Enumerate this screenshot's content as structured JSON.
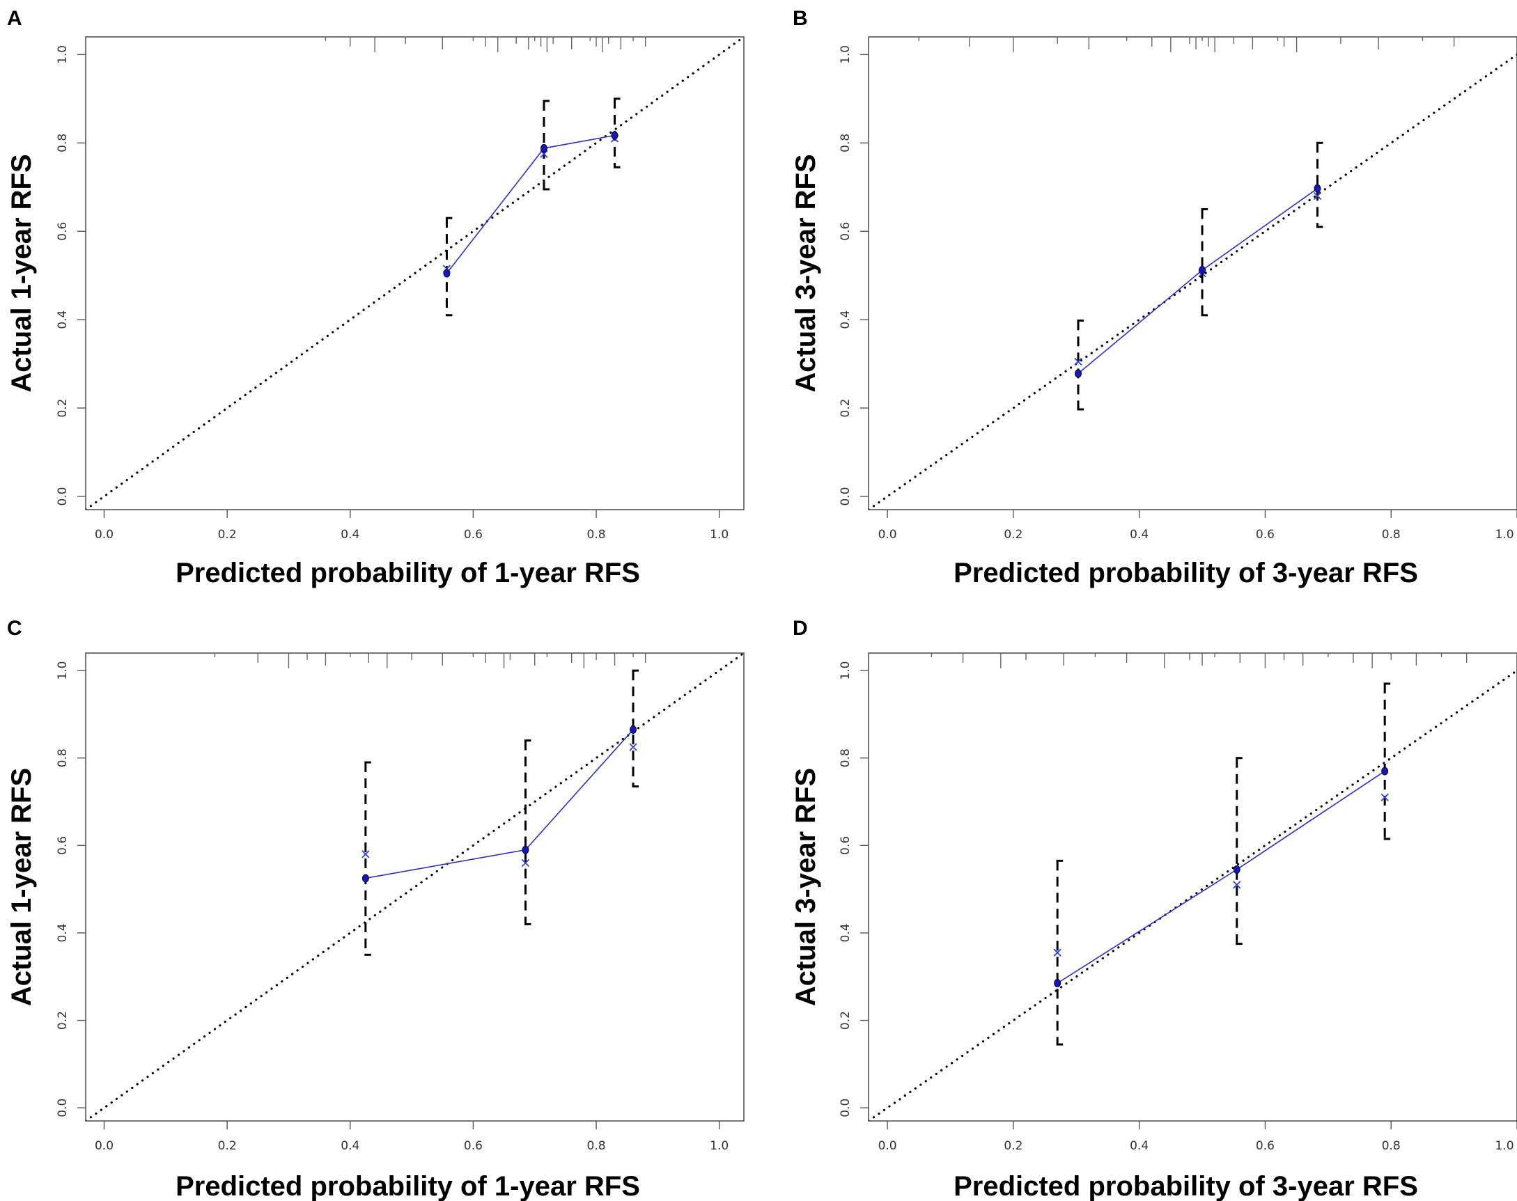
{
  "colors": {
    "line": "#3030c0",
    "point": "#1818b0",
    "cross": "#3040d0",
    "ideal": "#000000",
    "frame": "#555555"
  },
  "chart_data": [
    {
      "panel": "A",
      "type": "scatter",
      "xlabel": "Predicted probability of 1-year RFS",
      "ylabel": "Actual 1-year RFS",
      "xlim": [
        -0.03,
        1.04
      ],
      "ylim": [
        -0.03,
        1.04
      ],
      "xticks": [
        "0.0",
        "0.2",
        "0.4",
        "0.6",
        "0.8",
        "1.0"
      ],
      "yticks": [
        "0.0",
        "0.2",
        "0.4",
        "0.6",
        "0.8",
        "1.0"
      ],
      "points": [
        {
          "x": 0.557,
          "y": 0.505,
          "lower": 0.41,
          "upper": 0.63,
          "corrected": 0.515
        },
        {
          "x": 0.715,
          "y": 0.788,
          "lower": 0.695,
          "upper": 0.895,
          "corrected": 0.775
        },
        {
          "x": 0.83,
          "y": 0.817,
          "lower": 0.745,
          "upper": 0.9,
          "corrected": 0.81
        }
      ],
      "rug": [
        0.36,
        0.4,
        0.44,
        0.49,
        0.55,
        0.6,
        0.62,
        0.64,
        0.67,
        0.69,
        0.7,
        0.71,
        0.72,
        0.73,
        0.76,
        0.79,
        0.8,
        0.81,
        0.82,
        0.84,
        0.86,
        0.88
      ]
    },
    {
      "panel": "B",
      "type": "scatter",
      "xlabel": "Predicted probability of 3-year RFS",
      "ylabel": "Actual 3-year RFS",
      "xlim": [
        -0.03,
        1.0
      ],
      "ylim": [
        -0.03,
        1.04
      ],
      "xticks": [
        "0.0",
        "0.2",
        "0.4",
        "0.6",
        "0.8",
        "1.0"
      ],
      "yticks": [
        "0.0",
        "0.2",
        "0.4",
        "0.6",
        "0.8",
        "1.0"
      ],
      "points": [
        {
          "x": 0.303,
          "y": 0.278,
          "lower": 0.197,
          "upper": 0.398,
          "corrected": 0.305
        },
        {
          "x": 0.5,
          "y": 0.512,
          "lower": 0.41,
          "upper": 0.65,
          "corrected": 0.505
        },
        {
          "x": 0.683,
          "y": 0.697,
          "lower": 0.61,
          "upper": 0.8,
          "corrected": 0.68
        }
      ],
      "rug": [
        0.05,
        0.13,
        0.2,
        0.27,
        0.32,
        0.38,
        0.42,
        0.45,
        0.48,
        0.49,
        0.5,
        0.51,
        0.52,
        0.55,
        0.58,
        0.62,
        0.63,
        0.65,
        0.72,
        0.78,
        0.85,
        0.9
      ]
    },
    {
      "panel": "C",
      "type": "scatter",
      "xlabel": "Predicted probability of 1-year RFS",
      "ylabel": "Actual 1-year RFS",
      "xlim": [
        -0.03,
        1.04
      ],
      "ylim": [
        -0.03,
        1.04
      ],
      "xticks": [
        "0.0",
        "0.2",
        "0.4",
        "0.6",
        "0.8",
        "1.0"
      ],
      "yticks": [
        "0.0",
        "0.2",
        "0.4",
        "0.6",
        "0.8",
        "1.0"
      ],
      "points": [
        {
          "x": 0.425,
          "y": 0.525,
          "lower": 0.35,
          "upper": 0.79,
          "corrected": 0.58
        },
        {
          "x": 0.685,
          "y": 0.59,
          "lower": 0.42,
          "upper": 0.84,
          "corrected": 0.56
        },
        {
          "x": 0.86,
          "y": 0.865,
          "lower": 0.735,
          "upper": 1.0,
          "corrected": 0.825
        }
      ],
      "rug": [
        0.18,
        0.25,
        0.3,
        0.33,
        0.36,
        0.4,
        0.43,
        0.46,
        0.5,
        0.55,
        0.6,
        0.62,
        0.65,
        0.66,
        0.7,
        0.72,
        0.76,
        0.78,
        0.8,
        0.83,
        0.86,
        0.88
      ]
    },
    {
      "panel": "D",
      "type": "scatter",
      "xlabel": "Predicted probability of 3-year RFS",
      "ylabel": "Actual 3-year RFS",
      "xlim": [
        -0.03,
        1.0
      ],
      "ylim": [
        -0.03,
        1.04
      ],
      "xticks": [
        "0.0",
        "0.2",
        "0.4",
        "0.6",
        "0.8",
        "1.0"
      ],
      "yticks": [
        "0.0",
        "0.2",
        "0.4",
        "0.6",
        "0.8",
        "1.0"
      ],
      "points": [
        {
          "x": 0.27,
          "y": 0.285,
          "lower": 0.145,
          "upper": 0.565,
          "corrected": 0.355
        },
        {
          "x": 0.555,
          "y": 0.545,
          "lower": 0.375,
          "upper": 0.8,
          "corrected": 0.51
        },
        {
          "x": 0.79,
          "y": 0.77,
          "lower": 0.615,
          "upper": 0.97,
          "corrected": 0.71
        }
      ],
      "rug": [
        0.07,
        0.12,
        0.18,
        0.22,
        0.28,
        0.33,
        0.38,
        0.44,
        0.48,
        0.5,
        0.52,
        0.56,
        0.6,
        0.63,
        0.66,
        0.7,
        0.74,
        0.77,
        0.8,
        0.84,
        0.88,
        0.92
      ]
    }
  ]
}
